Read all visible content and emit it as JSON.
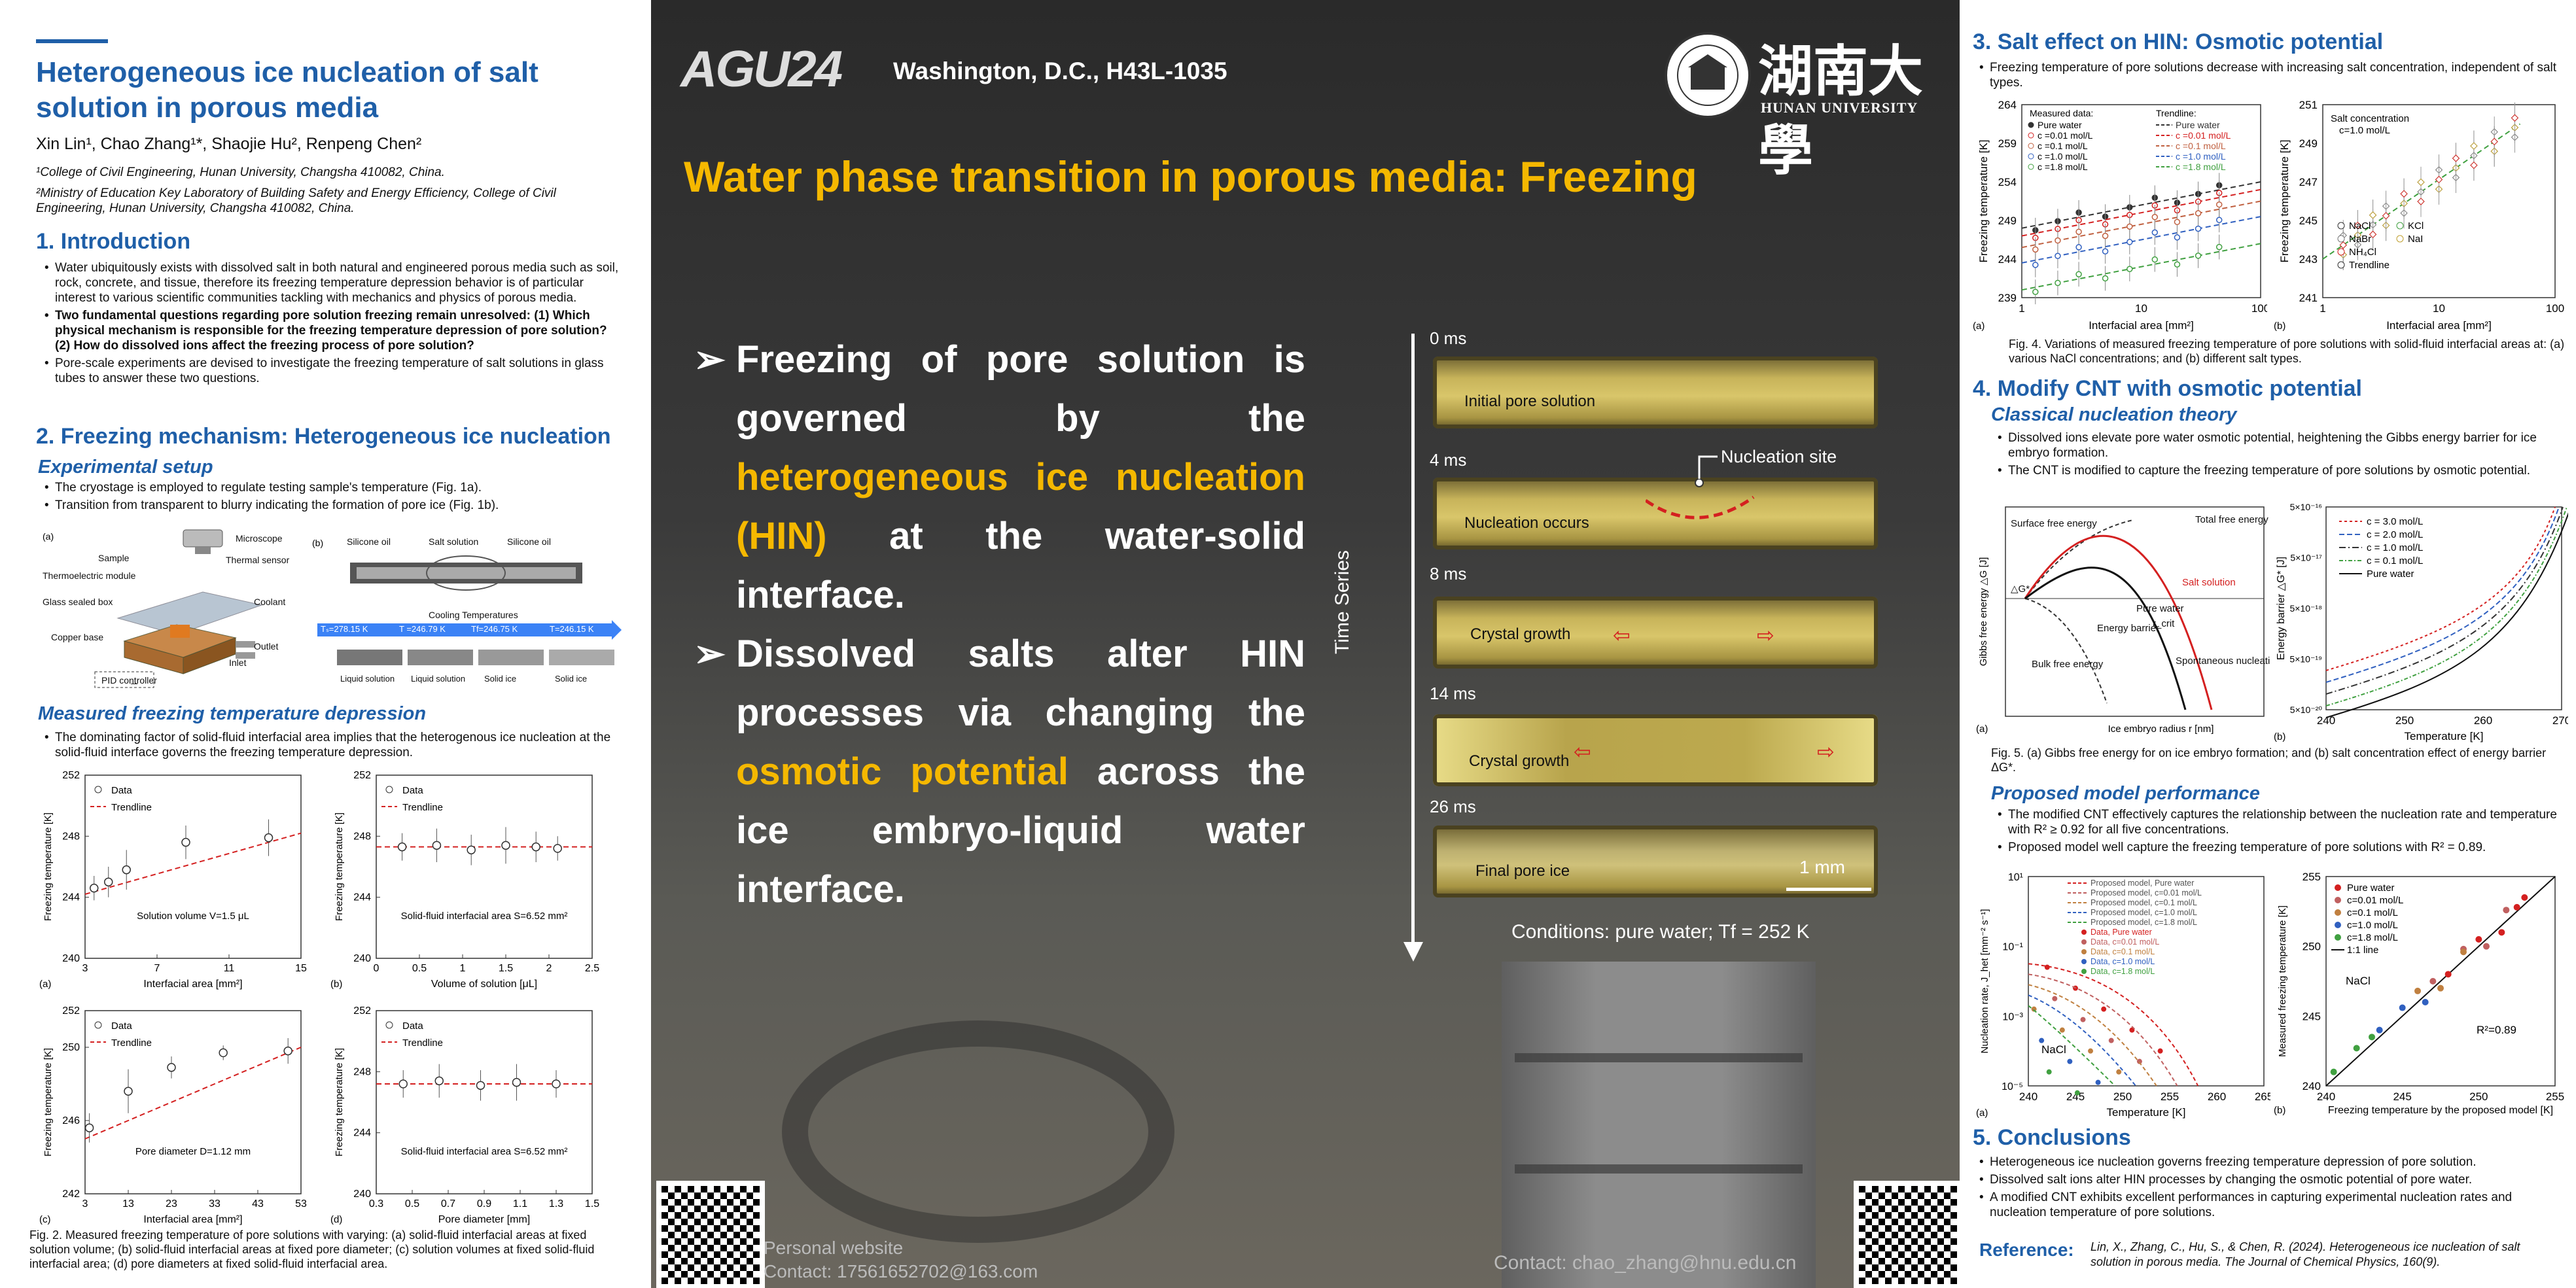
{
  "left": {
    "title": "Heterogeneous ice nucleation of salt solution in porous media",
    "authors": "Xin Lin¹, Chao Zhang¹*, Shaojie Hu², Renpeng Chen²",
    "affil1": "¹College of Civil Engineering, Hunan University, Changsha 410082, China.",
    "affil2": "²Ministry of Education Key Laboratory of Building Safety and Energy Efficiency, College of Civil Engineering, Hunan University, Changsha 410082, China.",
    "intro_heading": "1. Introduction",
    "intro_bullets": [
      "Water ubiquitously exists with dissolved salt in both natural and engineered porous media such as soil, rock, concrete, and tissue, therefore its freezing temperature depression behavior is of particular interest to various scientific communities tackling with mechanics and physics of porous media.",
      "Two fundamental questions regarding pore solution freezing remain unresolved: (1) Which physical mechanism is responsible for the freezing temperature depression of pore solution? (2) How do dissolved ions affect the freezing process of pore solution?",
      "Pore-scale experiments are devised to investigate the freezing temperature of salt solutions in glass tubes to answer these two questions."
    ],
    "mech_heading": "2. Freezing mechanism: Heterogeneous ice nucleation",
    "setup_heading": "Experimental setup",
    "setup_bullets": [
      "The cryostage is employed to regulate testing sample's temperature (Fig. 1a).",
      "Transition from transparent to blurry indicating the formation of pore ice (Fig. 1b)."
    ],
    "fig1a_labels": [
      "Microscope",
      "Sample",
      "Thermal sensor",
      "Thermoelectric module",
      "Coolant",
      "Glass sealed box",
      "Copper base",
      "Outlet",
      "Inlet",
      "PID controller"
    ],
    "fig1b_labels": [
      "Silicone oil",
      "Salt solution",
      "Silicone oil",
      "Cooling Temperatures",
      "Tₛ=278.15 K",
      "T =246.79 K",
      "Tf=246.75 K",
      "T=246.15 K",
      "Liquid solution",
      "Liquid solution",
      "Solid ice",
      "Solid ice"
    ],
    "measured_heading": "Measured freezing temperature depression",
    "measured_bullet": "The dominating factor of solid-fluid interfacial area implies that the heterogenous ice nucleation at the solid-fluid interface governs the freezing temperature depression.",
    "fig2_caption": "Fig. 2. Measured freezing temperature of pore solutions with varying: (a) solid-fluid interfacial areas at fixed solution volume; (b) solid-fluid interfacial areas at fixed pore diameter; (c) solution volumes at fixed solid-fluid interfacial area; (d) pore diameters at fixed solid-fluid interfacial area."
  },
  "mid": {
    "logo": "AGU24",
    "location": "Washington, D.C., H43L-1035",
    "uni_cn": "湖南大學",
    "uni_en": "HUNAN UNIVERSITY",
    "banner": "Water phase transition in porous media: Freezing",
    "point1_a": "Freezing of pore solution is governed by the ",
    "point1_hl": "heterogeneous ice nucleation (HIN)",
    "point1_b": " at the water-solid interface.",
    "point2_a": "Dissolved salts alter HIN processes via changing the ",
    "point2_hl": "osmotic potential",
    "point2_b": " across the ice embryo-liquid water interface.",
    "time_axis": "Time Series",
    "frames": [
      {
        "time": "0 ms",
        "label": "Initial pore solution"
      },
      {
        "time": "4 ms",
        "label": "Nucleation occurs"
      },
      {
        "time": "8 ms",
        "label": "Crystal growth"
      },
      {
        "time": "14 ms",
        "label": "Crystal growth"
      },
      {
        "time": "26 ms",
        "label": "Final pore ice"
      }
    ],
    "nucleation_site": "Nucleation site",
    "scale": "1 mm",
    "conditions": "Conditions: pure water; Tf = 252 K",
    "personal_website": "Personal website",
    "contact_left": "Contact: 17561652702@163.com",
    "contact_right": "Contact: chao_zhang@hnu.edu.cn"
  },
  "right": {
    "salt_heading": "3. Salt effect on HIN: Osmotic potential",
    "salt_bullet": "Freezing temperature of pore solutions decrease with increasing salt concentration, independent of salt types.",
    "fig4_caption": "Fig. 4. Variations of measured freezing temperature of pore solutions with solid-fluid interfacial areas at: (a) various NaCl concentrations; and (b) different salt types.",
    "cnt_heading": "4. Modify CNT with osmotic potential",
    "classical_heading": "Classical nucleation theory",
    "classical_bullets": [
      "Dissolved ions elevate pore water osmotic potential, heightening the Gibbs energy barrier for ice embryo formation.",
      "The CNT is modified to capture the freezing temperature of pore solutions by osmotic potential."
    ],
    "fig5_caption": "Fig. 5. (a) Gibbs free energy for on ice embryo formation; and (b) salt concentration effect of energy barrier ΔG*.",
    "performance_heading": "Proposed model performance",
    "performance_bullets": [
      "The modified CNT effectively captures the relationship between the nucleation rate and temperature with R² ≥ 0.92 for all five concentrations.",
      "Proposed model well capture the freezing temperature of pore solutions with R² = 0.89."
    ],
    "conclusions_heading": "5. Conclusions",
    "conclusions": [
      "Heterogeneous ice nucleation governs freezing temperature depression of pore solution.",
      "Dissolved salt ions alter HIN processes by changing the osmotic potential of pore water.",
      "A modified CNT exhibits excellent performances in capturing experimental nucleation rates and nucleation temperature of pore solutions."
    ],
    "reference_label": "Reference:",
    "reference": "Lin, X., Zhang, C., Hu, S., & Chen, R. (2024). Heterogeneous ice nucleation of salt solution in porous media. The Journal of Chemical Physics, 160(9)."
  },
  "chart_data": [
    {
      "id": "fig2a",
      "type": "scatter",
      "ylabel": "Freezing temperature [K]",
      "xlabel": "Interfacial area [mm²]",
      "note": "Solution volume V=1.5 μL",
      "xlim": [
        3,
        15
      ],
      "ylim": [
        240,
        252
      ],
      "xticks": [
        3,
        7,
        11,
        15
      ],
      "yticks": [
        240,
        244,
        248,
        252
      ],
      "series": [
        {
          "name": "Data",
          "x": [
            3.5,
            4.3,
            5.3,
            8.6,
            13.2
          ],
          "y": [
            244.6,
            245.0,
            245.8,
            247.6,
            247.9
          ],
          "err": [
            0.8,
            1.0,
            1.3,
            1.1,
            1.2
          ]
        },
        {
          "name": "Trendline",
          "x": [
            3,
            15
          ],
          "y": [
            244.2,
            248.2
          ]
        }
      ]
    },
    {
      "id": "fig2b",
      "type": "scatter",
      "ylabel": "Freezing temperature [K]",
      "xlabel": "Volume of solution [μL]",
      "note": "Solid-fluid interfacial area S=6.52 mm²",
      "xlim": [
        0,
        2.5
      ],
      "ylim": [
        240,
        252
      ],
      "xticks": [
        0,
        0.5,
        1,
        1.5,
        2,
        2.5
      ],
      "yticks": [
        240,
        244,
        248,
        252
      ],
      "series": [
        {
          "name": "Data",
          "x": [
            0.3,
            0.7,
            1.1,
            1.5,
            1.85,
            2.1
          ],
          "y": [
            247.3,
            247.4,
            247.1,
            247.4,
            247.3,
            247.2
          ],
          "err": [
            0.9,
            1.1,
            1.0,
            1.2,
            1.0,
            0.8
          ]
        },
        {
          "name": "Trendline",
          "x": [
            0,
            2.5
          ],
          "y": [
            247.3,
            247.3
          ]
        }
      ]
    },
    {
      "id": "fig2c",
      "type": "scatter",
      "ylabel": "Freezing temperature [K]",
      "xlabel": "Interfacial area [mm²]",
      "note": "Pore diameter D=1.12 mm",
      "xlim": [
        3,
        53
      ],
      "ylim": [
        242,
        252
      ],
      "xticks": [
        3,
        13,
        23,
        33,
        43,
        53
      ],
      "yticks": [
        242,
        246,
        250,
        252
      ],
      "series": [
        {
          "name": "Data",
          "x": [
            4,
            13,
            23,
            35,
            50
          ],
          "y": [
            245.6,
            247.6,
            248.9,
            249.7,
            249.8
          ],
          "err": [
            0.8,
            1.2,
            0.6,
            0.4,
            0.7
          ]
        },
        {
          "name": "Trendline",
          "x": [
            3,
            53
          ],
          "y": [
            245,
            250
          ]
        }
      ]
    },
    {
      "id": "fig2d",
      "type": "scatter",
      "ylabel": "Freezing temperature [K]",
      "xlabel": "Pore diameter [mm]",
      "note": "Solid-fluid interfacial area S=6.52 mm²",
      "xlim": [
        0.3,
        1.5
      ],
      "ylim": [
        240,
        252
      ],
      "xticks": [
        0.3,
        0.5,
        0.7,
        0.9,
        1.1,
        1.3,
        1.5
      ],
      "yticks": [
        240,
        244,
        248,
        252
      ],
      "series": [
        {
          "name": "Data",
          "x": [
            0.45,
            0.65,
            0.88,
            1.08,
            1.3
          ],
          "y": [
            247.2,
            247.4,
            247.1,
            247.3,
            247.2
          ],
          "err": [
            0.9,
            1.1,
            1.0,
            1.2,
            0.9
          ]
        },
        {
          "name": "Trendline",
          "x": [
            0.3,
            1.5
          ],
          "y": [
            247.2,
            247.2
          ]
        }
      ]
    },
    {
      "id": "fig4a",
      "type": "scatter",
      "xlabel": "Interfacial area [mm²]",
      "ylabel": "Freezing temperature [K]",
      "xscale": "log",
      "xlim": [
        1,
        100
      ],
      "ylim": [
        239,
        264
      ],
      "yticks": [
        239,
        244,
        249,
        254,
        259,
        264
      ],
      "legend_data": [
        "Pure water",
        "c =0.01 mol/L",
        "c =0.1 mol/L",
        "c =1.0 mol/L",
        "c =1.8 mol/L"
      ],
      "legend_trend": [
        "Pure water",
        "c =0.01 mol/L",
        "c =0.1 mol/L",
        "c =1.0 mol/L",
        "c =1.8 mol/L"
      ],
      "series": [
        {
          "name": "Pure water",
          "a": 248,
          "b": 6
        },
        {
          "name": "c =0.01 mol/L",
          "a": 247,
          "b": 6
        },
        {
          "name": "c =0.1 mol/L",
          "a": 245.5,
          "b": 6
        },
        {
          "name": "c =1.0 mol/L",
          "a": 243.5,
          "b": 6
        },
        {
          "name": "c =1.8 mol/L",
          "a": 240,
          "b": 6
        }
      ]
    },
    {
      "id": "fig4b",
      "type": "scatter",
      "xlabel": "Interfacial area [mm²]",
      "ylabel": "Freezing temperature [K]",
      "xscale": "log",
      "xlim": [
        1,
        100
      ],
      "ylim": [
        241,
        251
      ],
      "yticks": [
        241,
        243,
        245,
        247,
        249,
        251
      ],
      "note": "Salt concentration c=1.0 mol/L",
      "legend": [
        "NaCl",
        "KCl",
        "NaBr",
        "NaI",
        "NH₄Cl",
        "Trendline"
      ]
    },
    {
      "id": "fig5a",
      "type": "line",
      "xlabel": "Ice embryo radius r [nm]",
      "ylabel": "Gibbs free energy △G [J]",
      "labels": [
        "Surface free energy",
        "Total free energy",
        "Salt solution",
        "Pure water",
        "Energy barrier",
        "Spontaneous nucleation",
        "Bulk free energy",
        "△G*",
        "r_crit"
      ]
    },
    {
      "id": "fig5b",
      "type": "line",
      "xlabel": "Temperature [K]",
      "ylabel": "Energy barrier △G* [J]",
      "xlim": [
        240,
        270
      ],
      "yscale": "log",
      "yticks": [
        "5×10⁻²⁰",
        "5×10⁻¹⁹",
        "5×10⁻¹⁸",
        "5×10⁻¹⁷",
        "5×10⁻¹⁶"
      ],
      "xticks": [
        240,
        250,
        260,
        270
      ],
      "legend": [
        "c = 3.0 mol/L",
        "c = 2.0 mol/L",
        "c = 1.0 mol/L",
        "c = 0.1 mol/L",
        "Pure water"
      ]
    },
    {
      "id": "fig6a",
      "type": "scatter",
      "xlabel": "Temperature [K]",
      "ylabel": "Nucleation rate, J_het [mm⁻² s⁻¹]",
      "xlim": [
        240,
        265
      ],
      "yscale": "log",
      "xticks": [
        240,
        245,
        250,
        255,
        260,
        265
      ],
      "yticks": [
        "10⁻⁵",
        "10⁻³",
        "10⁻¹",
        "10¹"
      ],
      "note": "NaCl",
      "legend": [
        "Proposed model, Pure water",
        "Proposed model, c=0.01 mol/L",
        "Proposed model, c=0.1 mol/L",
        "Proposed model, c=1.0 mol/L",
        "Proposed model, c=1.8 mol/L",
        "Data, Pure water",
        "Data, c=0.01 mol/L",
        "Data, c=0.1 mol/L",
        "Data, c=1.0 mol/L",
        "Data, c=1.8 mol/L"
      ]
    },
    {
      "id": "fig6b",
      "type": "scatter",
      "xlabel": "Freezing temperature by the proposed model [K]",
      "ylabel": "Measured freezing temperature [K]",
      "xlim": [
        240,
        255
      ],
      "ylim": [
        240,
        255
      ],
      "xticks": [
        240,
        245,
        250,
        255
      ],
      "yticks": [
        240,
        245,
        250,
        255
      ],
      "note": "NaCl",
      "r2": "R²=0.89",
      "legend": [
        "Pure water",
        "c=0.01 mol/L",
        "c=0.1 mol/L",
        "c=1.0 mol/L",
        "c=1.8 mol/L",
        "1:1 line"
      ]
    }
  ]
}
